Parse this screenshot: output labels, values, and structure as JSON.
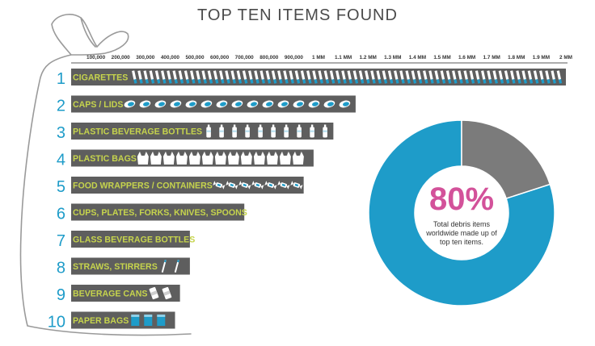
{
  "chart_data": {
    "type": "bar",
    "orientation": "horizontal",
    "title": "TOP TEN ITEMS FOUND",
    "xlabel": "",
    "ylabel": "",
    "xlim": [
      0,
      2000000
    ],
    "x_ticks": [
      {
        "value": 100000,
        "label": "100,000"
      },
      {
        "value": 200000,
        "label": "200,000"
      },
      {
        "value": 300000,
        "label": "300,000"
      },
      {
        "value": 400000,
        "label": "400,000"
      },
      {
        "value": 500000,
        "label": "500,000"
      },
      {
        "value": 600000,
        "label": "600,000"
      },
      {
        "value": 700000,
        "label": "700,000"
      },
      {
        "value": 800000,
        "label": "800,000"
      },
      {
        "value": 900000,
        "label": "900,000"
      },
      {
        "value": 1000000,
        "label": "1 MM"
      },
      {
        "value": 1100000,
        "label": "1.1 MM"
      },
      {
        "value": 1200000,
        "label": "1.2 MM"
      },
      {
        "value": 1300000,
        "label": "1.3 MM"
      },
      {
        "value": 1400000,
        "label": "1.4 MM"
      },
      {
        "value": 1500000,
        "label": "1.5 MM"
      },
      {
        "value": 1600000,
        "label": "1.6 MM"
      },
      {
        "value": 1700000,
        "label": "1.7 MM"
      },
      {
        "value": 1800000,
        "label": "1.8 MM"
      },
      {
        "value": 1900000,
        "label": "1.9 MM"
      },
      {
        "value": 2000000,
        "label": "2 MM"
      }
    ],
    "items": [
      {
        "rank": "1",
        "label": "CIGARETTES",
        "value": 2000000,
        "icon": "cigarette-icon"
      },
      {
        "rank": "2",
        "label": "CAPS / LIDS",
        "value": 1150000,
        "icon": "cap-icon"
      },
      {
        "rank": "3",
        "label": "PLASTIC BEVERAGE BOTTLES",
        "value": 1060000,
        "icon": "bottle-icon"
      },
      {
        "rank": "4",
        "label": "PLASTIC BAGS",
        "value": 980000,
        "icon": "plastic-bag-icon"
      },
      {
        "rank": "5",
        "label": "FOOD WRAPPERS / CONTAINERS",
        "value": 940000,
        "icon": "wrapper-icon"
      },
      {
        "rank": "6",
        "label": "CUPS, PLATES, FORKS, KNIVES, SPOONS",
        "value": 700000,
        "icon": "utensils-icon"
      },
      {
        "rank": "7",
        "label": "GLASS BEVERAGE BOTTLES",
        "value": 480000,
        "icon": "glass-bottle-icon"
      },
      {
        "rank": "8",
        "label": "STRAWS, STIRRERS",
        "value": 480000,
        "icon": "straw-icon"
      },
      {
        "rank": "9",
        "label": "BEVERAGE CANS",
        "value": 440000,
        "icon": "can-icon"
      },
      {
        "rank": "10",
        "label": "PAPER BAGS",
        "value": 420000,
        "icon": "paper-bag-icon"
      }
    ],
    "donut": {
      "value_label": "80%",
      "value": 80,
      "description_lines": [
        "Total debris items",
        "worldwide made up of",
        "top ten items."
      ],
      "segments": [
        {
          "value": 80,
          "color": "#1e9cc9"
        },
        {
          "value": 20,
          "color": "#7b7b7b"
        }
      ]
    },
    "colors": {
      "bar": "#5e5e5e",
      "label": "#c6d44d",
      "rank": "#1e9cc9",
      "icon_light": "#ffffff",
      "icon_accent": "#1e9cc9",
      "donut_text": "#d3529a",
      "outline": "#9a9a9a"
    },
    "grid": false,
    "legend": "none"
  }
}
